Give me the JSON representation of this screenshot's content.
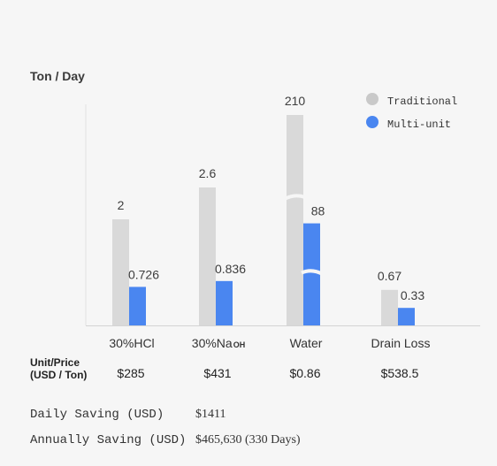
{
  "chart_data": {
    "type": "bar",
    "title": "Ton / Day",
    "categories": [
      "30%HCl",
      "30%NaOH",
      "Water",
      "Drain Loss"
    ],
    "category_parts": [
      {
        "main": "30%HCl",
        "sub": ""
      },
      {
        "main": "30%Na",
        "sub": "OH"
      },
      {
        "main": "Water",
        "sub": ""
      },
      {
        "main": "Drain Loss",
        "sub": ""
      }
    ],
    "series": [
      {
        "name": "Traditional",
        "values": [
          2,
          2.6,
          210,
          0.67
        ],
        "labels": [
          "2",
          "2.6",
          "210",
          "0.67"
        ],
        "color": "#d9d9d9"
      },
      {
        "name": "Multi-unit",
        "values": [
          0.726,
          0.836,
          88,
          0.33
        ],
        "labels": [
          "0.726",
          "0.836",
          "88",
          "0.33"
        ],
        "color": "#4a86f0"
      }
    ],
    "broken_axis_category": "Water",
    "legend_position": "top-right",
    "grid": false
  },
  "price_table": {
    "label_line1": "Unit/Price",
    "label_line2": "(USD / Ton)",
    "values": [
      "$285",
      "$431",
      "$0.86",
      "$538.5"
    ]
  },
  "savings": [
    {
      "label": "Daily Saving (USD)",
      "value": "$1411"
    },
    {
      "label": "Annually Saving (USD)",
      "value": "$465,630 (330 Days)"
    }
  ]
}
